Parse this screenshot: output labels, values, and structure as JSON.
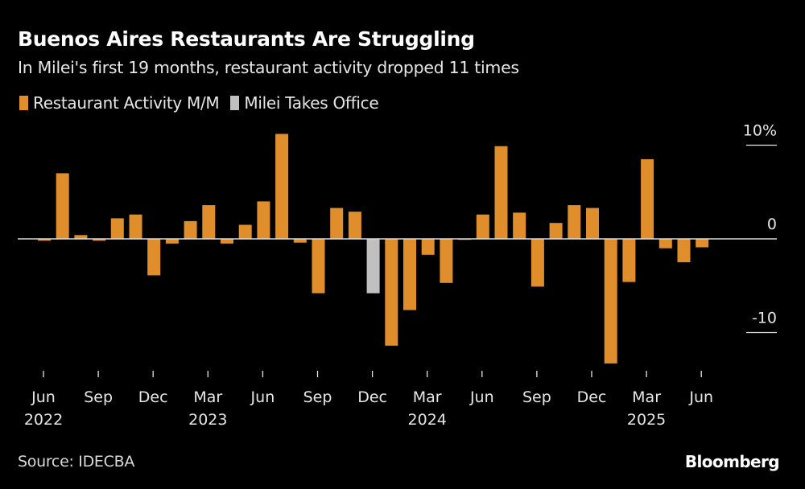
{
  "header": {
    "title": "Buenos Aires Restaurants Are Struggling",
    "subtitle": "In Milei's first 19 months, restaurant activity dropped 11 times"
  },
  "legend": [
    {
      "label": "Restaurant Activity M/M",
      "color": "#E08E2B"
    },
    {
      "label": "Milei Takes Office",
      "color": "#C0C0C0"
    }
  ],
  "footer": {
    "source": "Source: IDECBA",
    "brand": "Bloomberg"
  },
  "chart_data": {
    "type": "bar",
    "title": "Buenos Aires Restaurants Are Struggling",
    "subtitle": "In Milei's first 19 months, restaurant activity dropped 11 times",
    "xlabel": "",
    "ylabel": "",
    "ylim": [
      -14,
      11.5
    ],
    "y_ticks": [
      {
        "value": 10,
        "label": "10%"
      },
      {
        "value": 0,
        "label": "0"
      },
      {
        "value": -10,
        "label": "-10"
      }
    ],
    "y_axis_position": "right",
    "grid": false,
    "legend_position": "top-left",
    "categories": [
      "Jun 2022",
      "Jul 2022",
      "Aug 2022",
      "Sep 2022",
      "Oct 2022",
      "Nov 2022",
      "Dec 2022",
      "Jan 2023",
      "Feb 2023",
      "Mar 2023",
      "Apr 2023",
      "May 2023",
      "Jun 2023",
      "Jul 2023",
      "Aug 2023",
      "Sep 2023",
      "Oct 2023",
      "Nov 2023",
      "Dec 2023",
      "Jan 2024",
      "Feb 2024",
      "Mar 2024",
      "Apr 2024",
      "May 2024",
      "Jun 2024",
      "Jul 2024",
      "Aug 2024",
      "Sep 2024",
      "Oct 2024",
      "Nov 2024",
      "Dec 2024",
      "Jan 2025",
      "Feb 2025",
      "Mar 2025",
      "Apr 2025",
      "May 2025",
      "Jun 2025"
    ],
    "series": [
      {
        "name": "Restaurant Activity M/M",
        "color": "#E08E2B",
        "highlight_color": "#C0C0C0",
        "highlight_label": "Milei Takes Office",
        "highlight_index": 18,
        "values": [
          -0.2,
          7.0,
          0.4,
          -0.2,
          2.2,
          2.6,
          -3.9,
          -0.5,
          1.9,
          3.6,
          -0.5,
          1.5,
          4.0,
          11.2,
          -0.4,
          -5.8,
          3.3,
          2.9,
          -5.8,
          -11.4,
          -7.6,
          -1.7,
          -4.7,
          -0.1,
          2.6,
          9.9,
          2.8,
          -5.1,
          1.7,
          3.6,
          3.3,
          -13.3,
          -4.6,
          8.5,
          -1.0,
          -2.5,
          -0.9
        ]
      }
    ],
    "x_ticks": [
      {
        "index": 0,
        "month": "Jun",
        "year": "2022"
      },
      {
        "index": 3,
        "month": "Sep",
        "year": ""
      },
      {
        "index": 6,
        "month": "Dec",
        "year": ""
      },
      {
        "index": 9,
        "month": "Mar",
        "year": "2023"
      },
      {
        "index": 12,
        "month": "Jun",
        "year": ""
      },
      {
        "index": 15,
        "month": "Sep",
        "year": ""
      },
      {
        "index": 18,
        "month": "Dec",
        "year": ""
      },
      {
        "index": 21,
        "month": "Mar",
        "year": "2024"
      },
      {
        "index": 24,
        "month": "Jun",
        "year": ""
      },
      {
        "index": 27,
        "month": "Sep",
        "year": ""
      },
      {
        "index": 30,
        "month": "Dec",
        "year": ""
      },
      {
        "index": 33,
        "month": "Mar",
        "year": "2025"
      },
      {
        "index": 36,
        "month": "Jun",
        "year": ""
      }
    ]
  }
}
